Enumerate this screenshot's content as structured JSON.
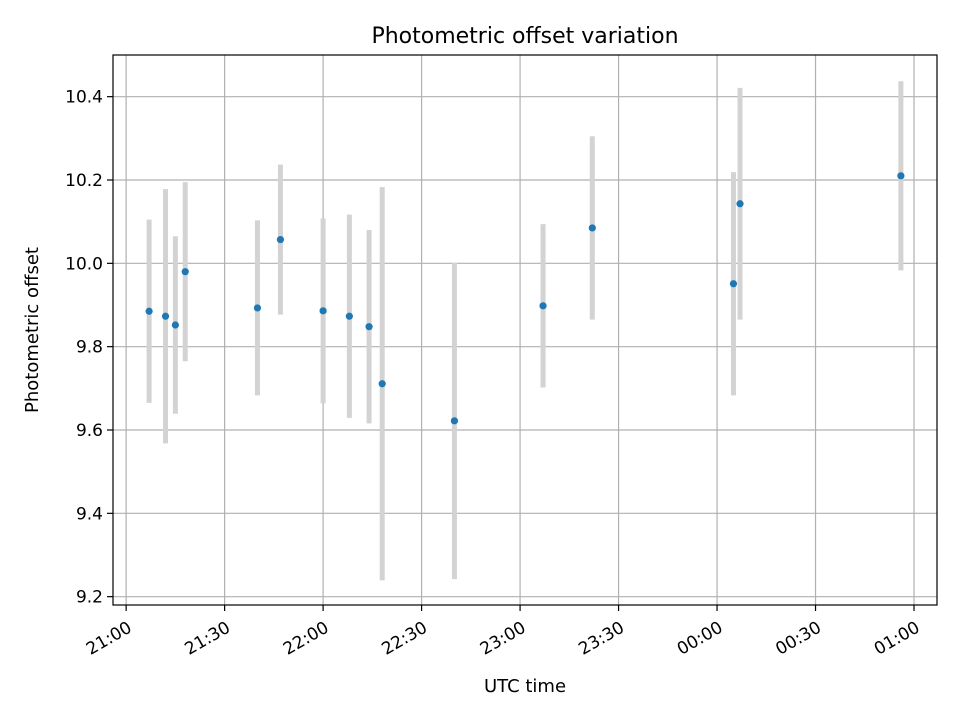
{
  "chart_data": {
    "type": "scatter",
    "title": "Photometric offset variation",
    "xlabel": "UTC time",
    "ylabel": "Photometric offset",
    "x_ticks": [
      {
        "minutes": 1260,
        "label": "21:00"
      },
      {
        "minutes": 1290,
        "label": "21:30"
      },
      {
        "minutes": 1320,
        "label": "22:00"
      },
      {
        "minutes": 1350,
        "label": "22:30"
      },
      {
        "minutes": 1380,
        "label": "23:00"
      },
      {
        "minutes": 1410,
        "label": "23:30"
      },
      {
        "minutes": 1440,
        "label": "00:00"
      },
      {
        "minutes": 1470,
        "label": "00:30"
      },
      {
        "minutes": 1500,
        "label": "01:00"
      }
    ],
    "y_ticks": [
      9.2,
      9.4,
      9.6,
      9.8,
      10.0,
      10.2,
      10.4
    ],
    "xlim": [
      1256,
      1507
    ],
    "ylim": [
      9.18,
      10.5
    ],
    "grid": true,
    "point_color": "#1f77b4",
    "errorbar_color": "#d3d3d3",
    "points": [
      {
        "time": "21:07",
        "y": 9.885,
        "err": 0.22
      },
      {
        "time": "21:12",
        "y": 9.873,
        "err": 0.305
      },
      {
        "time": "21:15",
        "y": 9.852,
        "err": 0.213
      },
      {
        "time": "21:18",
        "y": 9.98,
        "err": 0.215
      },
      {
        "time": "21:40",
        "y": 9.893,
        "err": 0.21
      },
      {
        "time": "21:47",
        "y": 10.057,
        "err": 0.18
      },
      {
        "time": "22:00",
        "y": 9.886,
        "err": 0.222
      },
      {
        "time": "22:08",
        "y": 9.873,
        "err": 0.244
      },
      {
        "time": "22:14",
        "y": 9.848,
        "err": 0.232
      },
      {
        "time": "22:18",
        "y": 9.711,
        "err": 0.472
      },
      {
        "time": "22:40",
        "y": 9.622,
        "err": 0.38
      },
      {
        "time": "23:07",
        "y": 9.898,
        "err": 0.196
      },
      {
        "time": "23:22",
        "y": 10.085,
        "err": 0.22
      },
      {
        "time": "00:05",
        "y": 9.951,
        "err": 0.268
      },
      {
        "time": "00:07",
        "y": 10.143,
        "err": 0.278
      },
      {
        "time": "00:56",
        "y": 10.21,
        "err": 0.227
      }
    ]
  }
}
